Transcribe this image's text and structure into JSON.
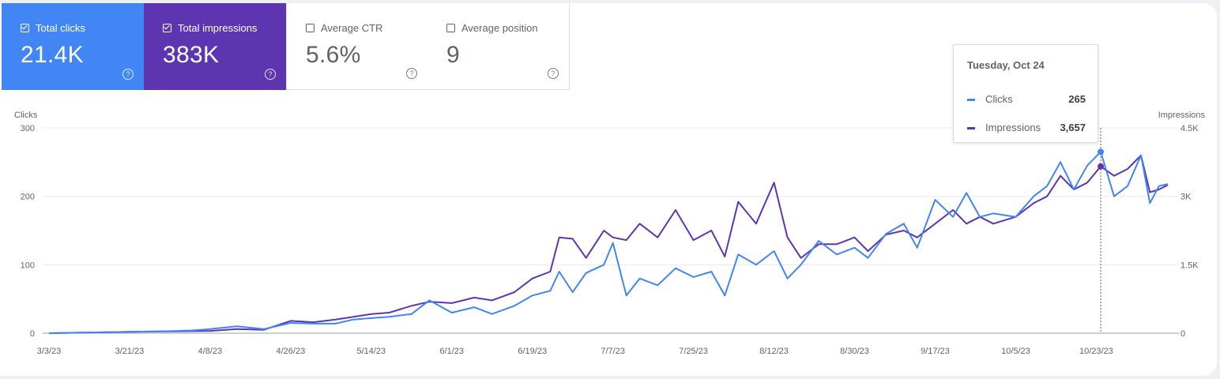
{
  "metrics": [
    {
      "label": "Total clicks",
      "value": "21.4K",
      "checked": true
    },
    {
      "label": "Total impressions",
      "value": "383K",
      "checked": true
    },
    {
      "label": "Average CTR",
      "value": "5.6%",
      "checked": false
    },
    {
      "label": "Average position",
      "value": "9",
      "checked": false
    }
  ],
  "help_glyph": "?",
  "tooltip": {
    "date": "Tuesday, Oct 24",
    "rows": [
      {
        "label": "Clicks",
        "value": "265"
      },
      {
        "label": "Impressions",
        "value": "3,657"
      }
    ]
  },
  "colors": {
    "clicks": "#4285f4",
    "impressions": "#5e35b1"
  },
  "chart_data": {
    "type": "line",
    "x_ticks": [
      "3/3/23",
      "3/21/23",
      "4/8/23",
      "4/26/23",
      "5/14/23",
      "6/1/23",
      "6/19/23",
      "7/7/23",
      "7/25/23",
      "8/12/23",
      "8/30/23",
      "9/17/23",
      "10/5/23",
      "10/23/23"
    ],
    "x_range": [
      "3/3/23",
      "11/8/23"
    ],
    "y_left": {
      "label": "Clicks",
      "ticks": [
        "0",
        "100",
        "200",
        "300"
      ],
      "ylim": [
        0,
        300
      ]
    },
    "y_right": {
      "label": "Impressions",
      "ticks": [
        "0",
        "1.5K",
        "3K",
        "4.5K"
      ],
      "ylim": [
        0,
        4500
      ]
    },
    "grid": true,
    "highlight": {
      "date": "10/24/23",
      "clicks": 265,
      "impressions": 3657
    },
    "series": [
      {
        "name": "Clicks",
        "axis": "left",
        "color": "#4285f4",
        "points": [
          [
            "3/3/23",
            0
          ],
          [
            "3/12/23",
            1
          ],
          [
            "3/21/23",
            2
          ],
          [
            "3/30/23",
            3
          ],
          [
            "4/4/23",
            4
          ],
          [
            "4/8/23",
            6
          ],
          [
            "4/14/23",
            10
          ],
          [
            "4/20/23",
            6
          ],
          [
            "4/26/23",
            15
          ],
          [
            "5/1/23",
            14
          ],
          [
            "5/6/23",
            14
          ],
          [
            "5/10/23",
            20
          ],
          [
            "5/14/23",
            22
          ],
          [
            "5/18/23",
            24
          ],
          [
            "5/23/23",
            28
          ],
          [
            "5/27/23",
            48
          ],
          [
            "6/1/23",
            30
          ],
          [
            "6/6/23",
            38
          ],
          [
            "6/10/23",
            28
          ],
          [
            "6/15/23",
            40
          ],
          [
            "6/19/23",
            55
          ],
          [
            "6/23/23",
            62
          ],
          [
            "6/25/23",
            90
          ],
          [
            "6/28/23",
            60
          ],
          [
            "7/1/23",
            88
          ],
          [
            "7/5/23",
            100
          ],
          [
            "7/7/23",
            132
          ],
          [
            "7/10/23",
            55
          ],
          [
            "7/13/23",
            80
          ],
          [
            "7/17/23",
            70
          ],
          [
            "7/21/23",
            95
          ],
          [
            "7/25/23",
            82
          ],
          [
            "7/29/23",
            90
          ],
          [
            "8/1/23",
            55
          ],
          [
            "8/4/23",
            115
          ],
          [
            "8/8/23",
            100
          ],
          [
            "8/12/23",
            120
          ],
          [
            "8/15/23",
            80
          ],
          [
            "8/18/23",
            100
          ],
          [
            "8/22/23",
            135
          ],
          [
            "8/26/23",
            115
          ],
          [
            "8/30/23",
            125
          ],
          [
            "9/2/23",
            110
          ],
          [
            "9/6/23",
            145
          ],
          [
            "9/10/23",
            160
          ],
          [
            "9/13/23",
            125
          ],
          [
            "9/17/23",
            195
          ],
          [
            "9/21/23",
            170
          ],
          [
            "9/24/23",
            205
          ],
          [
            "9/27/23",
            170
          ],
          [
            "9/30/23",
            175
          ],
          [
            "10/5/23",
            170
          ],
          [
            "10/9/23",
            200
          ],
          [
            "10/12/23",
            215
          ],
          [
            "10/15/23",
            250
          ],
          [
            "10/18/23",
            210
          ],
          [
            "10/21/23",
            245
          ],
          [
            "10/24/23",
            265
          ],
          [
            "10/27/23",
            200
          ],
          [
            "10/30/23",
            215
          ],
          [
            "11/2/23",
            260
          ],
          [
            "11/4/23",
            190
          ],
          [
            "11/6/23",
            215
          ],
          [
            "11/8/23",
            218
          ]
        ]
      },
      {
        "name": "Impressions",
        "axis": "right",
        "color": "#5e35b1",
        "points": [
          [
            "3/3/23",
            0
          ],
          [
            "3/12/23",
            15
          ],
          [
            "3/21/23",
            30
          ],
          [
            "3/30/23",
            40
          ],
          [
            "4/4/23",
            45
          ],
          [
            "4/8/23",
            50
          ],
          [
            "4/14/23",
            90
          ],
          [
            "4/20/23",
            75
          ],
          [
            "4/26/23",
            270
          ],
          [
            "5/1/23",
            240
          ],
          [
            "5/6/23",
            300
          ],
          [
            "5/10/23",
            360
          ],
          [
            "5/14/23",
            420
          ],
          [
            "5/18/23",
            450
          ],
          [
            "5/23/23",
            600
          ],
          [
            "5/27/23",
            690
          ],
          [
            "6/1/23",
            660
          ],
          [
            "6/6/23",
            780
          ],
          [
            "6/10/23",
            720
          ],
          [
            "6/15/23",
            900
          ],
          [
            "6/19/23",
            1200
          ],
          [
            "6/23/23",
            1350
          ],
          [
            "6/25/23",
            2100
          ],
          [
            "6/28/23",
            2070
          ],
          [
            "7/1/23",
            1650
          ],
          [
            "7/5/23",
            2250
          ],
          [
            "7/7/23",
            2100
          ],
          [
            "7/10/23",
            2040
          ],
          [
            "7/13/23",
            2400
          ],
          [
            "7/17/23",
            2100
          ],
          [
            "7/21/23",
            2700
          ],
          [
            "7/25/23",
            2040
          ],
          [
            "7/29/23",
            2250
          ],
          [
            "8/1/23",
            1680
          ],
          [
            "8/4/23",
            2880
          ],
          [
            "8/8/23",
            2400
          ],
          [
            "8/12/23",
            3300
          ],
          [
            "8/15/23",
            2100
          ],
          [
            "8/18/23",
            1650
          ],
          [
            "8/22/23",
            1950
          ],
          [
            "8/26/23",
            1950
          ],
          [
            "8/30/23",
            2100
          ],
          [
            "9/2/23",
            1800
          ],
          [
            "9/6/23",
            2160
          ],
          [
            "9/10/23",
            2250
          ],
          [
            "9/13/23",
            2100
          ],
          [
            "9/17/23",
            2400
          ],
          [
            "9/21/23",
            2700
          ],
          [
            "9/24/23",
            2400
          ],
          [
            "9/27/23",
            2550
          ],
          [
            "9/30/23",
            2400
          ],
          [
            "10/5/23",
            2550
          ],
          [
            "10/9/23",
            2850
          ],
          [
            "10/12/23",
            3000
          ],
          [
            "10/15/23",
            3450
          ],
          [
            "10/18/23",
            3150
          ],
          [
            "10/21/23",
            3300
          ],
          [
            "10/24/23",
            3657
          ],
          [
            "10/27/23",
            3450
          ],
          [
            "10/30/23",
            3600
          ],
          [
            "11/2/23",
            3900
          ],
          [
            "11/4/23",
            3090
          ],
          [
            "11/6/23",
            3150
          ],
          [
            "11/8/23",
            3250
          ]
        ]
      }
    ]
  }
}
